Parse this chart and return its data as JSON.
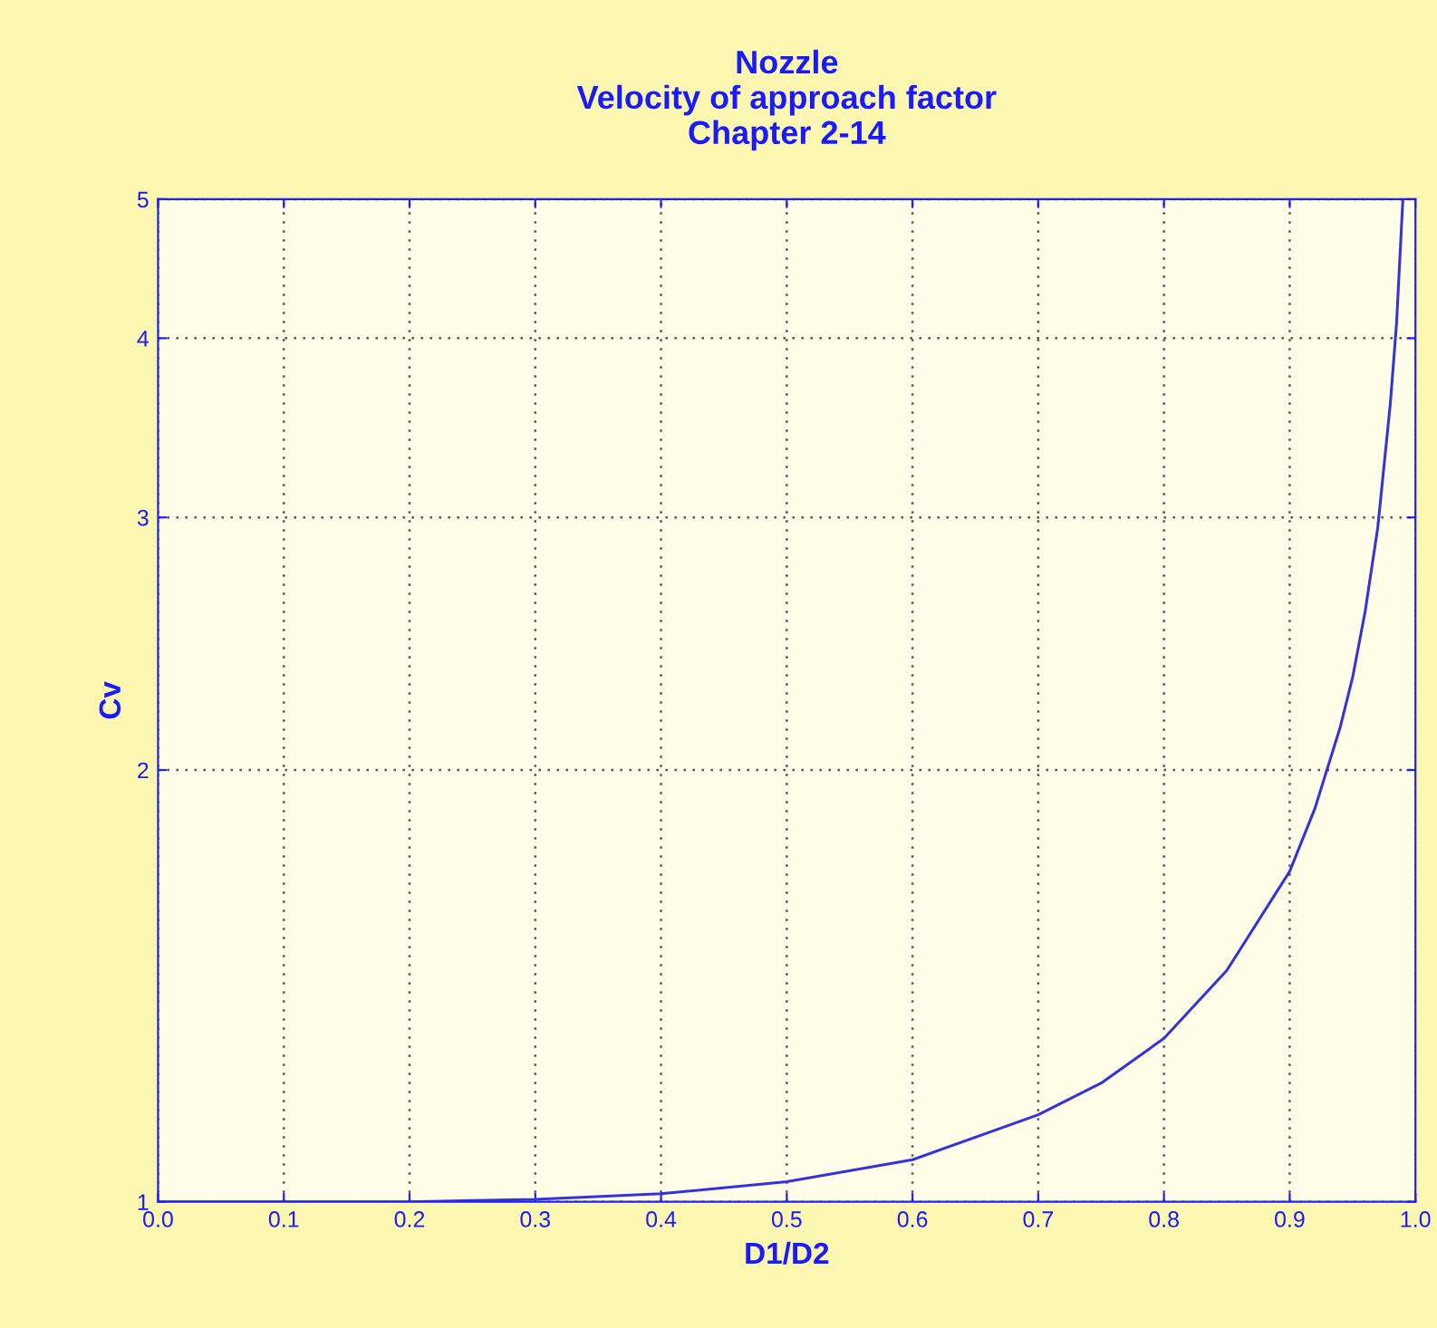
{
  "chart_data": {
    "type": "line",
    "title": "Nozzle\nVelocity of approach factor\nChapter 2-14",
    "xlabel": "D1/D2",
    "ylabel": "Cv",
    "x": [
      0,
      0.1,
      0.2,
      0.3,
      0.4,
      0.5,
      0.6,
      0.7,
      0.75,
      0.8,
      0.85,
      0.9,
      0.92,
      0.94,
      0.95,
      0.96,
      0.97,
      0.98,
      0.985,
      0.99
    ],
    "series": [
      {
        "color": "#3333dd",
        "values": [
          1.0,
          1.0,
          1.0,
          1.004,
          1.013,
          1.033,
          1.07,
          1.15,
          1.21,
          1.3,
          1.45,
          1.7,
          1.88,
          2.14,
          2.32,
          2.58,
          2.95,
          3.6,
          4.1,
          5.0
        ]
      }
    ],
    "xlim": [
      0,
      1
    ],
    "xticks": [
      {
        "value": 0,
        "label": "0.0"
      },
      0.1,
      0.2,
      0.3,
      0.4,
      0.5,
      0.6,
      0.7,
      0.8,
      0.9,
      {
        "value": 1,
        "label": "1.0"
      }
    ],
    "ylim": [
      1,
      5
    ],
    "yticks": [
      1,
      2,
      3,
      4,
      5
    ],
    "log": "y",
    "grid": true,
    "marker": "none",
    "line_style": "solid"
  }
}
